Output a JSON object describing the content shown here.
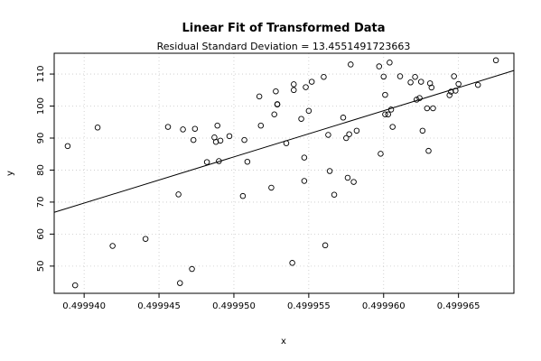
{
  "chart_data": {
    "type": "scatter",
    "title": "Linear Fit of Transformed Data",
    "subtitle": "Residual Standard Deviation =  13.4551491723663",
    "xlabel": "x",
    "ylabel": "y",
    "xlim": [
      0.499938,
      0.4999687
    ],
    "ylim": [
      41.5,
      116.5
    ],
    "x_ticks": [
      0.49994,
      0.499945,
      0.49995,
      0.499955,
      0.49996,
      0.499965
    ],
    "x_tick_labels": [
      "0.499940",
      "0.499945",
      "0.499950",
      "0.499955",
      "0.499960",
      "0.499965"
    ],
    "y_ticks": [
      50,
      60,
      70,
      80,
      90,
      100,
      110
    ],
    "y_tick_labels": [
      "50",
      "60",
      "70",
      "80",
      "90",
      "100",
      "110"
    ],
    "grid": true,
    "fit_line": {
      "x": [
        0.499938,
        0.4999687
      ],
      "y": [
        66.8,
        111.1
      ]
    },
    "points": [
      [
        0.4999389,
        87.5
      ],
      [
        0.4999394,
        44.0
      ],
      [
        0.4999409,
        93.3
      ],
      [
        0.4999419,
        56.3
      ],
      [
        0.4999441,
        58.5
      ],
      [
        0.4999456,
        93.5
      ],
      [
        0.4999463,
        72.4
      ],
      [
        0.4999464,
        44.7
      ],
      [
        0.4999466,
        92.7
      ],
      [
        0.4999472,
        49.1
      ],
      [
        0.4999473,
        89.4
      ],
      [
        0.4999474,
        92.9
      ],
      [
        0.4999482,
        82.5
      ],
      [
        0.4999487,
        90.2
      ],
      [
        0.4999488,
        88.8
      ],
      [
        0.4999489,
        93.9
      ],
      [
        0.499949,
        82.8
      ],
      [
        0.4999491,
        89.2
      ],
      [
        0.4999497,
        90.6
      ],
      [
        0.4999506,
        71.9
      ],
      [
        0.4999507,
        89.4
      ],
      [
        0.4999509,
        82.6
      ],
      [
        0.4999517,
        103.0
      ],
      [
        0.4999518,
        93.9
      ],
      [
        0.4999525,
        74.5
      ],
      [
        0.4999527,
        97.4
      ],
      [
        0.4999528,
        104.6
      ],
      [
        0.4999529,
        100.6
      ],
      [
        0.4999529,
        100.5
      ],
      [
        0.4999535,
        88.4
      ],
      [
        0.4999539,
        51.0
      ],
      [
        0.499954,
        106.8
      ],
      [
        0.499954,
        105.0
      ],
      [
        0.4999545,
        96.0
      ],
      [
        0.4999547,
        83.9
      ],
      [
        0.4999547,
        76.6
      ],
      [
        0.4999548,
        105.9
      ],
      [
        0.499955,
        98.5
      ],
      [
        0.4999552,
        107.6
      ],
      [
        0.499956,
        109.1
      ],
      [
        0.4999561,
        56.5
      ],
      [
        0.4999563,
        91.0
      ],
      [
        0.4999564,
        79.7
      ],
      [
        0.4999567,
        72.3
      ],
      [
        0.4999573,
        96.4
      ],
      [
        0.4999575,
        90.0
      ],
      [
        0.4999576,
        77.6
      ],
      [
        0.4999577,
        91.2
      ],
      [
        0.4999578,
        113.0
      ],
      [
        0.499958,
        76.3
      ],
      [
        0.4999582,
        92.3
      ],
      [
        0.4999597,
        112.4
      ],
      [
        0.4999598,
        85.1
      ],
      [
        0.49996,
        109.2
      ],
      [
        0.4999601,
        103.5
      ],
      [
        0.4999601,
        97.4
      ],
      [
        0.4999603,
        97.4
      ],
      [
        0.4999604,
        113.6
      ],
      [
        0.4999605,
        98.9
      ],
      [
        0.4999606,
        93.5
      ],
      [
        0.4999611,
        109.3
      ],
      [
        0.4999618,
        107.4
      ],
      [
        0.4999621,
        109.1
      ],
      [
        0.4999622,
        102.0
      ],
      [
        0.4999624,
        102.5
      ],
      [
        0.4999625,
        107.6
      ],
      [
        0.4999626,
        92.3
      ],
      [
        0.4999629,
        99.3
      ],
      [
        0.499963,
        86.0
      ],
      [
        0.4999631,
        107.1
      ],
      [
        0.4999632,
        105.8
      ],
      [
        0.4999633,
        99.3
      ],
      [
        0.4999644,
        103.4
      ],
      [
        0.4999645,
        104.5
      ],
      [
        0.4999647,
        109.3
      ],
      [
        0.4999648,
        104.8
      ],
      [
        0.499965,
        106.9
      ],
      [
        0.4999663,
        106.6
      ],
      [
        0.4999675,
        114.3
      ]
    ]
  }
}
